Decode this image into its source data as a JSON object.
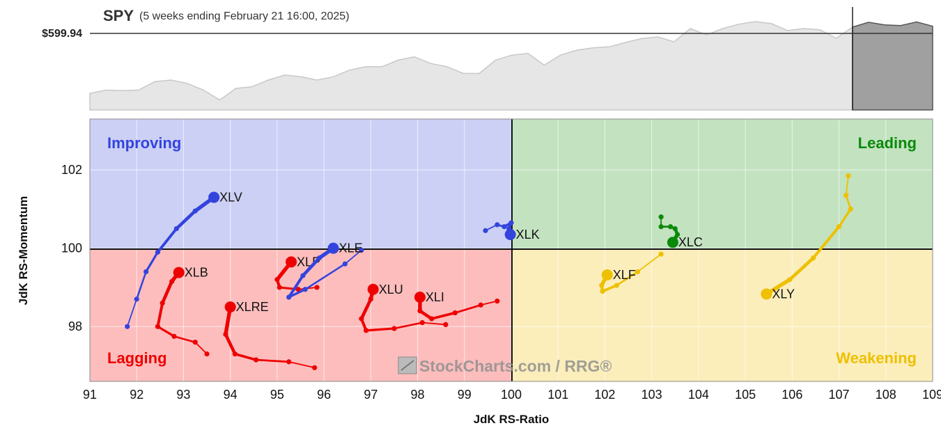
{
  "header": {
    "symbol": "SPY",
    "period": "(5 weeks ending February 21 16:00, 2025)",
    "price_label": "$599.94"
  },
  "colors": {
    "improving": "#ccd0f5",
    "leading": "#c2e2c0",
    "lagging": "#fdbdbd",
    "weakening": "#fbeebb",
    "blue": "#3344dd",
    "green": "#0a8a0a",
    "red": "#ee0000",
    "yellow": "#eec000",
    "spy_area": "#e6e6e6",
    "spy_line": "#c8c8c8",
    "future_area": "#a0a0a0"
  },
  "quadrants": {
    "improving": "Improving",
    "leading": "Leading",
    "lagging": "Lagging",
    "weakening": "Weakening"
  },
  "watermark": "StockCharts.com / RRG®",
  "chart_data": [
    {
      "type": "area",
      "title": "SPY",
      "subtitle": "(5 weeks ending February 21 16:00, 2025)",
      "reference_line": 599.94,
      "ylim": [
        575,
        606
      ],
      "series": [
        {
          "values": [
            580,
            581,
            580.8,
            581,
            583.5,
            584,
            583,
            581,
            578,
            581.5,
            582,
            584,
            585.5,
            585,
            584,
            585,
            587,
            588,
            588,
            590,
            591,
            589,
            588,
            586,
            586,
            590,
            591.5,
            592,
            588.5,
            591.5,
            593,
            593.7,
            594,
            595.3,
            596.5,
            597,
            595.5,
            599.5,
            597.6,
            599.5,
            600.8,
            601.6,
            601,
            598.9,
            599.5,
            599.1,
            596.6,
            599.94
          ]
        },
        {
          "values": [
            599.94,
            601.4,
            600.6,
            600.4,
            601.5,
            600.2
          ]
        }
      ]
    },
    {
      "type": "scatter",
      "xlabel": "JdK RS-Ratio",
      "ylabel": "JdK RS-Momentum",
      "xlim": [
        91,
        109
      ],
      "ylim": [
        96.6,
        103.3
      ],
      "x_ticks": [
        "91",
        "92",
        "93",
        "94",
        "95",
        "96",
        "97",
        "98",
        "99",
        "100",
        "101",
        "102",
        "103",
        "104",
        "105",
        "106",
        "107",
        "108",
        "109"
      ],
      "y_ticks": [
        "98",
        "100",
        "102"
      ],
      "series": [
        {
          "name": "XLV",
          "color": "blue",
          "points": [
            [
              91.8,
              98.0
            ],
            [
              92.0,
              98.7
            ],
            [
              92.2,
              99.4
            ],
            [
              92.45,
              99.9
            ],
            [
              92.85,
              100.5
            ],
            [
              93.25,
              100.95
            ],
            [
              93.65,
              101.3
            ]
          ]
        },
        {
          "name": "XLB",
          "color": "red",
          "points": [
            [
              93.5,
              97.3
            ],
            [
              93.25,
              97.6
            ],
            [
              92.8,
              97.75
            ],
            [
              92.45,
              98.0
            ],
            [
              92.55,
              98.6
            ],
            [
              92.75,
              99.15
            ],
            [
              92.9,
              99.38
            ]
          ]
        },
        {
          "name": "XLRE",
          "color": "red",
          "points": [
            [
              95.8,
              96.95
            ],
            [
              95.25,
              97.1
            ],
            [
              94.55,
              97.15
            ],
            [
              94.1,
              97.3
            ],
            [
              93.9,
              97.8
            ],
            [
              94.0,
              98.5
            ]
          ]
        },
        {
          "name": "XLP",
          "color": "red",
          "points": [
            [
              95.85,
              99.0
            ],
            [
              95.45,
              98.95
            ],
            [
              95.05,
              99.0
            ],
            [
              95.0,
              99.2
            ],
            [
              95.3,
              99.65
            ]
          ]
        },
        {
          "name": "XLE",
          "color": "blue",
          "points": [
            [
              96.8,
              99.95
            ],
            [
              96.45,
              99.6
            ],
            [
              95.6,
              98.95
            ],
            [
              95.25,
              98.75
            ],
            [
              95.55,
              99.3
            ],
            [
              95.9,
              99.75
            ],
            [
              96.2,
              100.0
            ]
          ]
        },
        {
          "name": "XLU",
          "color": "red",
          "points": [
            [
              98.6,
              98.05
            ],
            [
              98.1,
              98.1
            ],
            [
              97.5,
              97.95
            ],
            [
              96.9,
              97.9
            ],
            [
              96.8,
              98.2
            ],
            [
              97.0,
              98.7
            ],
            [
              97.05,
              98.95
            ]
          ]
        },
        {
          "name": "XLI",
          "color": "red",
          "points": [
            [
              99.7,
              98.65
            ],
            [
              99.35,
              98.55
            ],
            [
              98.8,
              98.35
            ],
            [
              98.3,
              98.2
            ],
            [
              98.05,
              98.4
            ],
            [
              98.05,
              98.75
            ]
          ]
        },
        {
          "name": "XLK",
          "color": "blue",
          "points": [
            [
              99.45,
              100.45
            ],
            [
              99.7,
              100.6
            ],
            [
              99.85,
              100.55
            ],
            [
              100.0,
              100.65
            ],
            [
              99.95,
              100.5
            ],
            [
              99.98,
              100.35
            ]
          ]
        },
        {
          "name": "XLC",
          "color": "green",
          "points": [
            [
              103.2,
              100.8
            ],
            [
              103.2,
              100.55
            ],
            [
              103.4,
              100.55
            ],
            [
              103.5,
              100.5
            ],
            [
              103.55,
              100.35
            ],
            [
              103.45,
              100.15
            ]
          ]
        },
        {
          "name": "XLF",
          "color": "yellow",
          "points": [
            [
              103.2,
              99.85
            ],
            [
              102.7,
              99.4
            ],
            [
              102.25,
              99.05
            ],
            [
              101.95,
              98.9
            ],
            [
              101.93,
              99.05
            ],
            [
              102.05,
              99.32
            ]
          ]
        },
        {
          "name": "XLY",
          "color": "yellow",
          "points": [
            [
              107.2,
              101.85
            ],
            [
              107.15,
              101.35
            ],
            [
              107.25,
              101.0
            ],
            [
              107.0,
              100.55
            ],
            [
              106.45,
              99.75
            ],
            [
              105.95,
              99.2
            ],
            [
              105.45,
              98.83
            ]
          ]
        }
      ]
    }
  ]
}
